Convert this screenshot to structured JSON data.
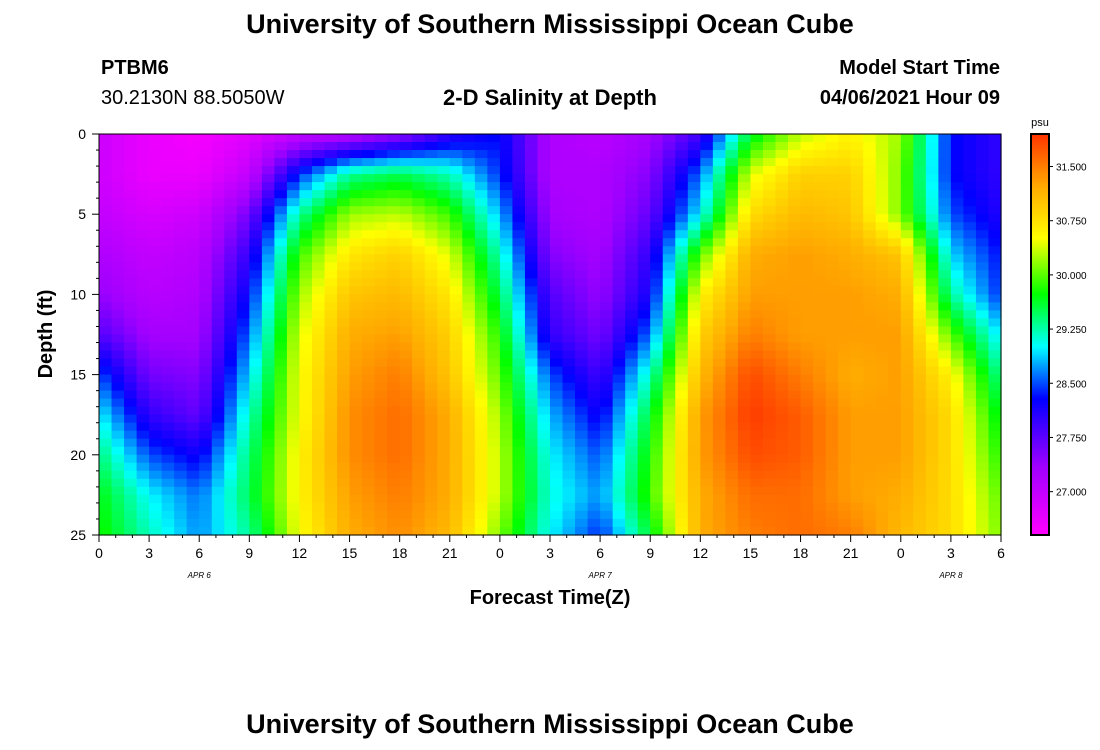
{
  "title": "University of Southern Mississippi Ocean Cube",
  "footer_title": "University of Southern Mississippi Ocean Cube",
  "station": {
    "id": "PTBM6",
    "coords": "30.2130N  88.5050W"
  },
  "chart_title": "2-D Salinity at Depth",
  "model": {
    "label": "Model Start Time",
    "value": "04/06/2021 Hour 09"
  },
  "chart_data": {
    "type": "heatmap",
    "variable": "Salinity",
    "units": "psu",
    "xlabel": "Forecast Time(Z)",
    "ylabel": "Depth (ft)",
    "x_hours": [
      0,
      3,
      6,
      9,
      12,
      15,
      18,
      21,
      24,
      27,
      30,
      33,
      36,
      39,
      42,
      45,
      48,
      51,
      54
    ],
    "x_tick_labels": [
      "0",
      "3",
      "6",
      "9",
      "12",
      "15",
      "18",
      "21",
      "0",
      "3",
      "6",
      "9",
      "12",
      "15",
      "18",
      "21",
      "0",
      "3",
      "6"
    ],
    "date_labels": [
      {
        "hour": 6,
        "label": "APR 6"
      },
      {
        "hour": 30,
        "label": "APR 7"
      },
      {
        "hour": 51,
        "label": "APR 8"
      }
    ],
    "y_ticks": [
      0,
      5,
      10,
      15,
      20,
      25
    ],
    "ylim": [
      0,
      25
    ],
    "xlim": [
      0,
      54
    ],
    "colorbar": {
      "min": 26.4,
      "max": 31.95,
      "tick_values": [
        27.0,
        27.75,
        28.5,
        29.25,
        30.0,
        30.75,
        31.5
      ],
      "tick_labels": [
        "27.000",
        "27.750",
        "28.500",
        "29.250",
        "30.000",
        "30.750",
        "31.500"
      ]
    },
    "depths": [
      0,
      2.5,
      5,
      7.5,
      10,
      12.5,
      15,
      17.5,
      20,
      22.5,
      25
    ],
    "hours": [
      0,
      3,
      6,
      9,
      12,
      15,
      18,
      21,
      24,
      27,
      30,
      33,
      36,
      39,
      42,
      45,
      48,
      51,
      54
    ],
    "salinity": [
      [
        26.9,
        26.6,
        26.5,
        26.7,
        27.0,
        27.1,
        27.4,
        28.0,
        28.3,
        27.2,
        27.1,
        27.3,
        27.9,
        29.6,
        30.3,
        30.6,
        30.2,
        28.3,
        28.0
      ],
      [
        26.9,
        26.6,
        26.6,
        27.0,
        28.4,
        29.3,
        29.5,
        29.2,
        28.4,
        27.2,
        27.2,
        27.5,
        28.6,
        30.4,
        30.9,
        30.9,
        30.1,
        28.3,
        28.0
      ],
      [
        27.0,
        26.8,
        26.9,
        27.6,
        29.3,
        30.2,
        30.3,
        29.9,
        28.8,
        27.3,
        27.2,
        27.7,
        29.0,
        30.8,
        31.1,
        31.0,
        30.1,
        28.5,
        28.1
      ],
      [
        27.2,
        27.0,
        27.1,
        28.0,
        29.9,
        30.7,
        30.9,
        30.4,
        29.2,
        27.5,
        27.3,
        28.0,
        30.0,
        31.2,
        31.3,
        31.2,
        31.0,
        28.9,
        28.3
      ],
      [
        27.4,
        27.1,
        27.2,
        28.3,
        30.2,
        31.0,
        31.1,
        30.7,
        29.5,
        27.8,
        27.4,
        28.2,
        30.6,
        31.3,
        31.3,
        31.3,
        31.2,
        29.3,
        28.4
      ],
      [
        27.8,
        27.3,
        27.3,
        28.6,
        30.4,
        31.2,
        31.3,
        30.9,
        29.8,
        28.0,
        27.6,
        28.6,
        30.9,
        31.5,
        31.3,
        31.3,
        31.3,
        30.0,
        28.9
      ],
      [
        28.5,
        27.6,
        27.5,
        28.9,
        30.5,
        31.3,
        31.5,
        31.0,
        30.0,
        28.5,
        27.9,
        29.2,
        31.1,
        31.8,
        31.5,
        31.2,
        31.3,
        30.6,
        29.3
      ],
      [
        29.0,
        28.0,
        27.7,
        29.2,
        30.5,
        31.4,
        31.6,
        31.2,
        30.2,
        28.8,
        28.2,
        29.6,
        31.3,
        31.9,
        31.7,
        31.3,
        31.3,
        30.8,
        29.6
      ],
      [
        29.4,
        28.5,
        28.2,
        29.4,
        30.6,
        31.4,
        31.6,
        31.2,
        30.3,
        29.0,
        28.5,
        29.8,
        31.3,
        31.8,
        31.7,
        31.3,
        31.3,
        30.8,
        29.8
      ],
      [
        29.7,
        29.0,
        28.6,
        29.5,
        30.6,
        31.3,
        31.5,
        31.2,
        30.3,
        29.1,
        28.7,
        29.9,
        31.2,
        31.6,
        31.6,
        31.3,
        31.2,
        30.8,
        30.0
      ],
      [
        29.8,
        29.2,
        28.7,
        29.3,
        30.5,
        31.2,
        31.4,
        31.1,
        30.1,
        29.0,
        28.4,
        29.6,
        31.2,
        31.5,
        31.6,
        31.5,
        31.1,
        30.8,
        30.1
      ]
    ]
  }
}
